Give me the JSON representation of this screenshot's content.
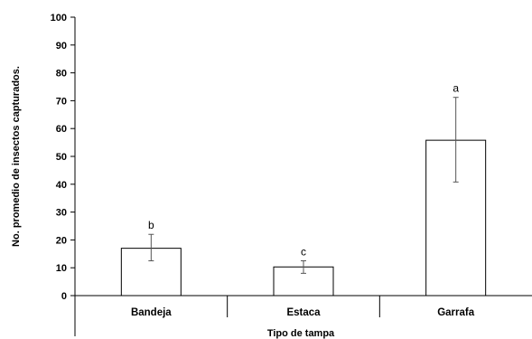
{
  "chart_data": {
    "type": "bar",
    "title": "",
    "xlabel": "Tipo de tampa",
    "ylabel": "No. promedio de insectos capturados.",
    "categories": [
      "Bandeja",
      "Estaca",
      "Garrafa"
    ],
    "values": [
      17,
      10.3,
      55.8
    ],
    "error_low": [
      12.5,
      8,
      40.8
    ],
    "error_high": [
      22,
      12.5,
      71.2
    ],
    "significance_letters": [
      "b",
      "c",
      "a"
    ],
    "ylim": [
      0,
      100
    ],
    "yticks": [
      "0",
      "10",
      "20",
      "30",
      "40",
      "50",
      "60",
      "70",
      "80",
      "90",
      "100"
    ],
    "grid": false,
    "legend": "none",
    "bar_fill": "#ffffff",
    "bar_stroke": "#000000",
    "error_bar_color": "#555555"
  }
}
